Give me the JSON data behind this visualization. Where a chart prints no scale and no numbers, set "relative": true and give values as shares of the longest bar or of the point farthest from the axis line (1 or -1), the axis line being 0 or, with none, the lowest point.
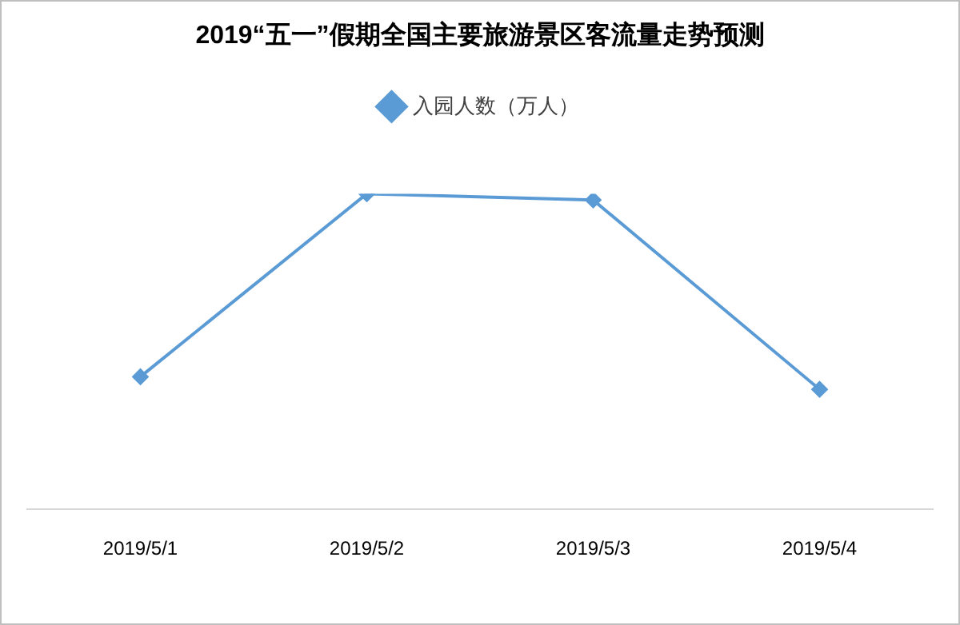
{
  "chart_data": {
    "type": "line",
    "title": "2019“五一”假期全国主要旅游景区客流量走势预测",
    "categories": [
      "2019/5/1",
      "2019/5/2",
      "2019/5/3",
      "2019/5/4"
    ],
    "relative": true,
    "legend": "top",
    "marker": "diamond",
    "line_style": "solid",
    "series": [
      {
        "name": "入园人数（万人）",
        "color": "#5b9bd5",
        "values": [
          0.42,
          1,
          0.98,
          0.38
        ]
      }
    ]
  }
}
